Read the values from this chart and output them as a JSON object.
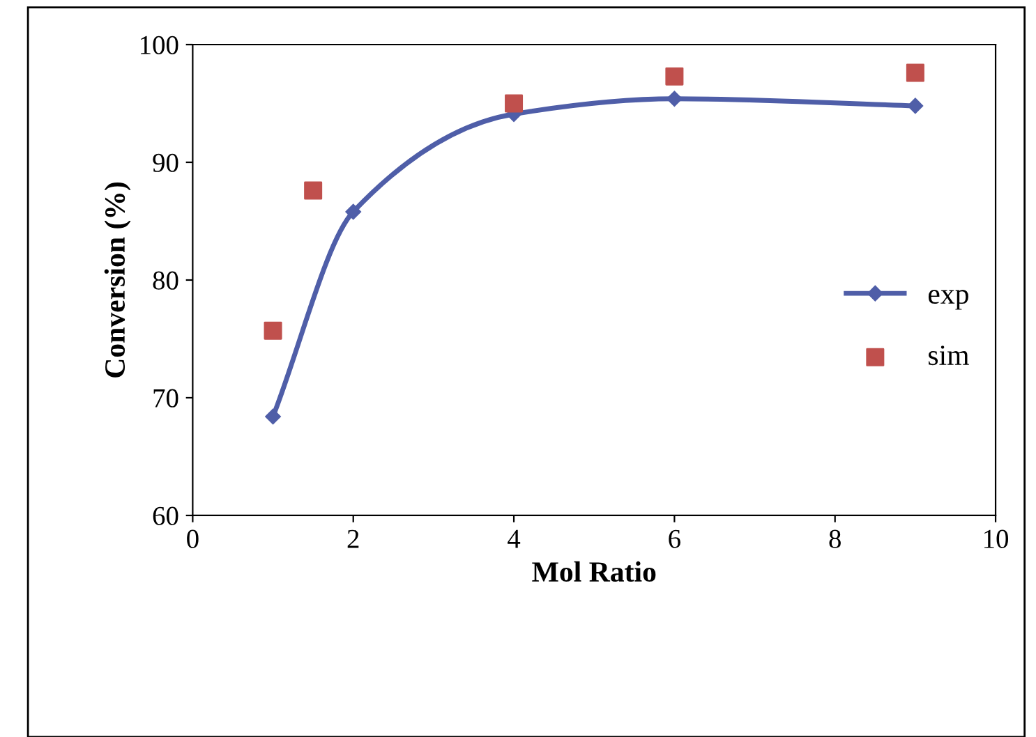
{
  "chart_data": {
    "type": "line",
    "xlabel": "Mol Ratio",
    "ylabel": "Conversion (%)",
    "xlim": [
      0,
      10
    ],
    "xticks": [
      0,
      2,
      4,
      6,
      8,
      10
    ],
    "ylim": [
      60,
      100
    ],
    "yticks": [
      60,
      70,
      80,
      90,
      100
    ],
    "grid": false,
    "legend": "right",
    "series": [
      {
        "name": "exp",
        "color": "#4f5ea8",
        "marker": "diamond",
        "line_style": "solid",
        "x": [
          1,
          2,
          4,
          6,
          9
        ],
        "values": [
          68.4,
          85.8,
          94.1,
          95.4,
          94.8
        ]
      },
      {
        "name": "sim",
        "type": "scatter",
        "color": "#c0504d",
        "marker": "square",
        "x": [
          1,
          1.5,
          4,
          6,
          9
        ],
        "values": [
          75.7,
          87.6,
          95.0,
          97.3,
          97.6
        ]
      }
    ]
  }
}
